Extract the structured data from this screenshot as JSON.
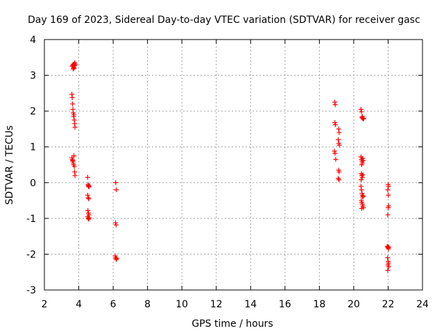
{
  "chart_data": {
    "type": "scatter",
    "title": "Day 169 of 2023, Sidereal Day-to-day VTEC variation (SDTVAR) for receiver gasc",
    "xlabel": "GPS time / hours",
    "ylabel": "SDTVAR / TECUs",
    "xlim": [
      2,
      24
    ],
    "ylim": [
      -3,
      4
    ],
    "xticks": [
      2,
      4,
      6,
      8,
      10,
      12,
      14,
      16,
      18,
      20,
      22,
      24
    ],
    "yticks": [
      -3,
      -2,
      -1,
      0,
      1,
      2,
      3,
      4
    ],
    "grid": true,
    "marker": "plus",
    "color": "#ff0000",
    "series": [
      {
        "name": "SDTVAR",
        "points": [
          [
            3.62,
            3.25
          ],
          [
            3.65,
            3.28
          ],
          [
            3.68,
            3.3
          ],
          [
            3.7,
            3.22
          ],
          [
            3.72,
            3.32
          ],
          [
            3.75,
            3.27
          ],
          [
            3.77,
            3.35
          ],
          [
            3.8,
            3.3
          ],
          [
            3.67,
            3.18
          ],
          [
            3.73,
            3.2
          ],
          [
            3.6,
            2.47
          ],
          [
            3.62,
            2.38
          ],
          [
            3.64,
            2.2
          ],
          [
            3.66,
            2.05
          ],
          [
            3.68,
            1.95
          ],
          [
            3.7,
            1.85
          ],
          [
            3.72,
            1.9
          ],
          [
            3.74,
            1.75
          ],
          [
            3.76,
            1.65
          ],
          [
            3.78,
            1.55
          ],
          [
            3.6,
            0.7
          ],
          [
            3.62,
            0.65
          ],
          [
            3.64,
            0.62
          ],
          [
            3.66,
            0.6
          ],
          [
            3.68,
            0.55
          ],
          [
            3.7,
            0.5
          ],
          [
            3.72,
            0.75
          ],
          [
            3.74,
            0.45
          ],
          [
            3.76,
            0.3
          ],
          [
            3.78,
            0.2
          ],
          [
            4.52,
            0.15
          ],
          [
            4.54,
            -0.05
          ],
          [
            4.56,
            -0.1
          ],
          [
            4.58,
            -0.08
          ],
          [
            4.6,
            -0.12
          ],
          [
            4.52,
            -0.35
          ],
          [
            4.55,
            -0.42
          ],
          [
            4.58,
            -0.45
          ],
          [
            4.53,
            -0.78
          ],
          [
            4.56,
            -0.85
          ],
          [
            4.59,
            -0.9
          ],
          [
            4.52,
            -0.95
          ],
          [
            4.55,
            -1.0
          ],
          [
            4.58,
            -1.02
          ],
          [
            4.6,
            -0.98
          ],
          [
            6.15,
            0.0
          ],
          [
            6.18,
            -0.2
          ],
          [
            6.14,
            -1.12
          ],
          [
            6.17,
            -1.18
          ],
          [
            6.12,
            -2.05
          ],
          [
            6.15,
            -2.1
          ],
          [
            6.18,
            -2.15
          ],
          [
            6.2,
            -2.12
          ],
          [
            18.9,
            2.25
          ],
          [
            18.92,
            2.18
          ],
          [
            18.9,
            1.68
          ],
          [
            18.93,
            1.62
          ],
          [
            18.88,
            0.88
          ],
          [
            18.91,
            0.82
          ],
          [
            18.95,
            0.65
          ],
          [
            19.12,
            1.5
          ],
          [
            19.15,
            1.4
          ],
          [
            19.1,
            1.2
          ],
          [
            19.13,
            1.1
          ],
          [
            19.16,
            1.05
          ],
          [
            19.12,
            0.35
          ],
          [
            19.15,
            0.3
          ],
          [
            19.1,
            0.12
          ],
          [
            19.14,
            0.08
          ],
          [
            20.42,
            2.05
          ],
          [
            20.45,
            1.98
          ],
          [
            20.5,
            1.85
          ],
          [
            20.52,
            1.8
          ],
          [
            20.55,
            1.78
          ],
          [
            20.48,
            1.82
          ],
          [
            20.58,
            1.8
          ],
          [
            20.42,
            0.72
          ],
          [
            20.45,
            0.65
          ],
          [
            20.48,
            0.6
          ],
          [
            20.5,
            0.55
          ],
          [
            20.52,
            0.68
          ],
          [
            20.55,
            0.62
          ],
          [
            20.46,
            0.5
          ],
          [
            20.44,
            0.25
          ],
          [
            20.47,
            0.2
          ],
          [
            20.5,
            0.15
          ],
          [
            20.43,
            0.08
          ],
          [
            20.52,
            0.22
          ],
          [
            20.42,
            -0.1
          ],
          [
            20.45,
            -0.2
          ],
          [
            20.48,
            -0.3
          ],
          [
            20.5,
            -0.35
          ],
          [
            20.52,
            -0.4
          ],
          [
            20.55,
            -0.38
          ],
          [
            20.44,
            -0.5
          ],
          [
            20.47,
            -0.55
          ],
          [
            20.5,
            -0.6
          ],
          [
            20.53,
            -0.65
          ],
          [
            20.56,
            -0.7
          ],
          [
            20.46,
            -0.72
          ],
          [
            22.0,
            -0.05
          ],
          [
            22.02,
            -0.1
          ],
          [
            21.98,
            -0.2
          ],
          [
            22.01,
            -0.35
          ],
          [
            22.03,
            -0.65
          ],
          [
            22.0,
            -0.7
          ],
          [
            21.98,
            -0.9
          ],
          [
            21.95,
            -1.78
          ],
          [
            21.98,
            -1.8
          ],
          [
            22.0,
            -1.82
          ],
          [
            22.02,
            -1.85
          ],
          [
            22.04,
            -1.8
          ],
          [
            21.97,
            -2.1
          ],
          [
            22.0,
            -2.2
          ],
          [
            22.02,
            -2.25
          ],
          [
            21.99,
            -2.3
          ],
          [
            22.03,
            -2.35
          ],
          [
            21.98,
            -2.45
          ]
        ]
      }
    ]
  }
}
